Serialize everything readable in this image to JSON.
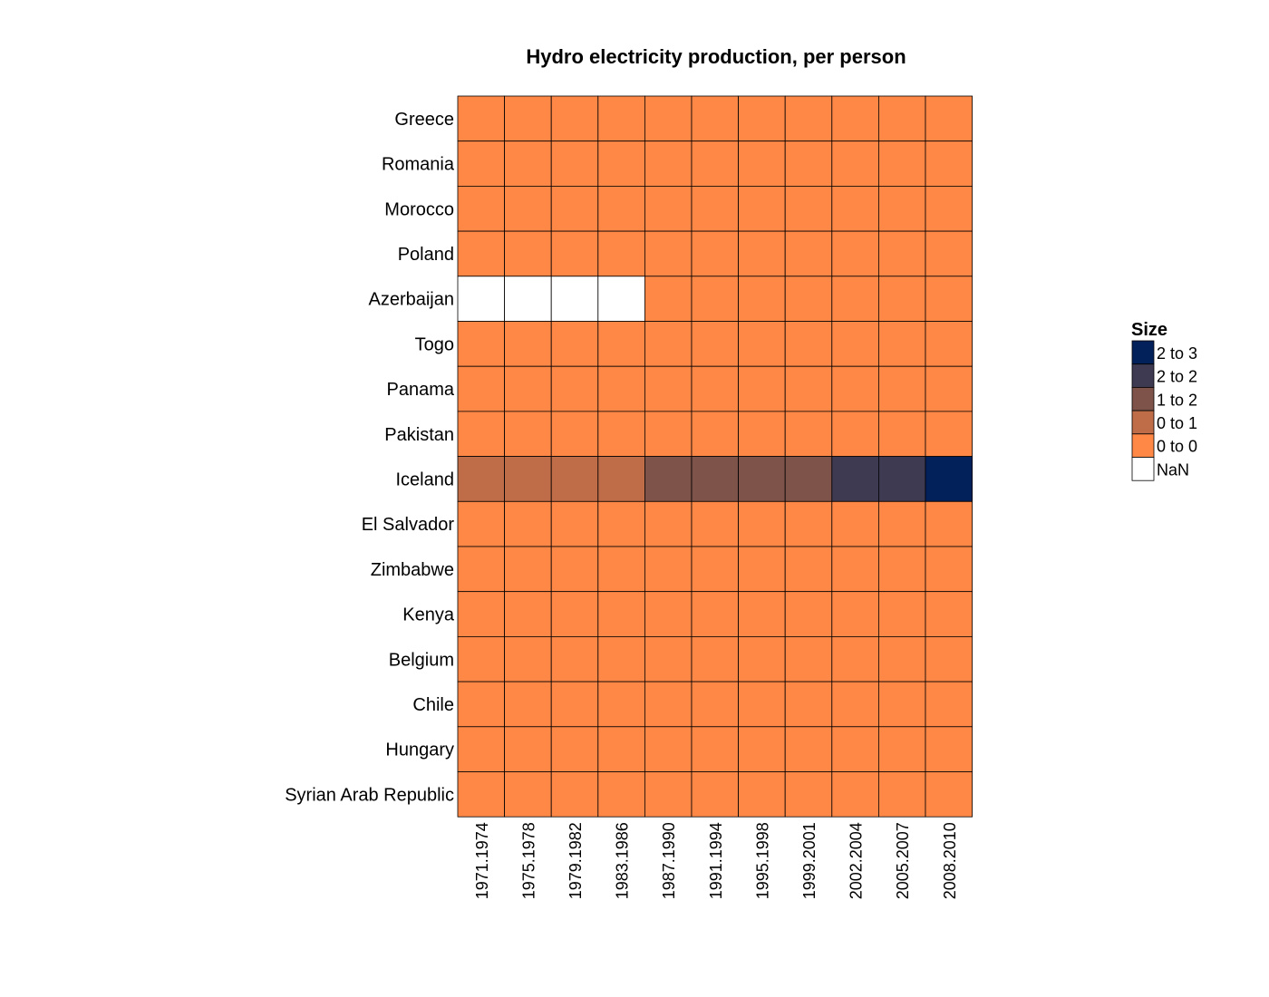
{
  "chart_data": {
    "type": "heatmap",
    "title": "Hydro electricity production, per person",
    "rows": [
      "Greece",
      "Romania",
      "Morocco",
      "Poland",
      "Azerbaijan",
      "Togo",
      "Panama",
      "Pakistan",
      "Iceland",
      "El Salvador",
      "Zimbabwe",
      "Kenya",
      "Belgium",
      "Chile",
      "Hungary",
      "Syrian Arab Republic"
    ],
    "columns": [
      "1971.1974",
      "1975.1978",
      "1979.1982",
      "1983.1986",
      "1987.1990",
      "1991.1994",
      "1995.1998",
      "1999.2001",
      "2002.2004",
      "2005.2007",
      "2008.2010"
    ],
    "bins": [
      {
        "label": "2  to  3",
        "color": "#022059"
      },
      {
        "label": "2  to  2",
        "color": "#3d3a51"
      },
      {
        "label": "1  to  2",
        "color": "#7e534a"
      },
      {
        "label": "0  to  1",
        "color": "#bf6c48"
      },
      {
        "label": "0  to  0",
        "color": "#ff8847"
      },
      {
        "label": "NaN",
        "color": "#ffffff"
      }
    ],
    "cells": [
      [
        4,
        4,
        4,
        4,
        4,
        4,
        4,
        4,
        4,
        4,
        4
      ],
      [
        4,
        4,
        4,
        4,
        4,
        4,
        4,
        4,
        4,
        4,
        4
      ],
      [
        4,
        4,
        4,
        4,
        4,
        4,
        4,
        4,
        4,
        4,
        4
      ],
      [
        4,
        4,
        4,
        4,
        4,
        4,
        4,
        4,
        4,
        4,
        4
      ],
      [
        5,
        5,
        5,
        5,
        4,
        4,
        4,
        4,
        4,
        4,
        4
      ],
      [
        4,
        4,
        4,
        4,
        4,
        4,
        4,
        4,
        4,
        4,
        4
      ],
      [
        4,
        4,
        4,
        4,
        4,
        4,
        4,
        4,
        4,
        4,
        4
      ],
      [
        4,
        4,
        4,
        4,
        4,
        4,
        4,
        4,
        4,
        4,
        4
      ],
      [
        3,
        3,
        3,
        3,
        2,
        2,
        2,
        2,
        1,
        1,
        0
      ],
      [
        4,
        4,
        4,
        4,
        4,
        4,
        4,
        4,
        4,
        4,
        4
      ],
      [
        4,
        4,
        4,
        4,
        4,
        4,
        4,
        4,
        4,
        4,
        4
      ],
      [
        4,
        4,
        4,
        4,
        4,
        4,
        4,
        4,
        4,
        4,
        4
      ],
      [
        4,
        4,
        4,
        4,
        4,
        4,
        4,
        4,
        4,
        4,
        4
      ],
      [
        4,
        4,
        4,
        4,
        4,
        4,
        4,
        4,
        4,
        4,
        4
      ],
      [
        4,
        4,
        4,
        4,
        4,
        4,
        4,
        4,
        4,
        4,
        4
      ],
      [
        4,
        4,
        4,
        4,
        4,
        4,
        4,
        4,
        4,
        4,
        4
      ]
    ],
    "legend": {
      "title": "Size",
      "position": "right"
    }
  }
}
